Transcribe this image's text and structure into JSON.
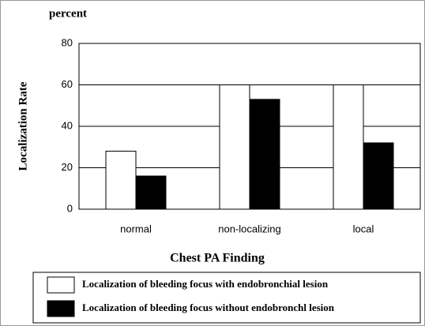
{
  "chart_data": {
    "type": "bar",
    "title": "percent",
    "ylabel": "Localization Rate",
    "xlabel": "Chest PA Finding",
    "categories": [
      "normal",
      "non-localizing",
      "local"
    ],
    "series": [
      {
        "name": "Localization of bleeding focus with endobronchial lesion",
        "color": "#ffffff",
        "values": [
          28,
          60,
          60
        ]
      },
      {
        "name": "Localization of bleeding focus without endobronchl lesion",
        "color": "#000000",
        "values": [
          16,
          53,
          32
        ]
      }
    ],
    "ylim": [
      0,
      80
    ],
    "yticks": [
      0,
      20,
      40,
      60,
      80
    ],
    "grid": true
  }
}
